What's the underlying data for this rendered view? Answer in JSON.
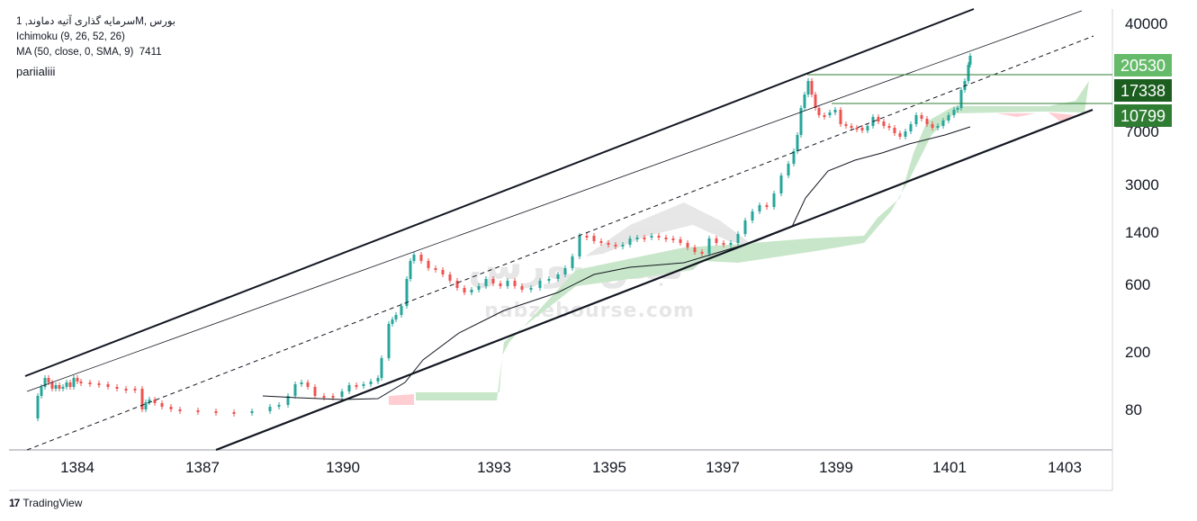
{
  "legend": {
    "line1": "بورس ,Mسرمایه گذاری آتیه دماوند, 1",
    "line2": "Ichimoku (9, 26, 52, 26)",
    "line3_label": "MA (50, close, 0, SMA, 9)",
    "line3_value": "7411"
  },
  "tag": "pariialiii",
  "watermark": {
    "text": "nabzebourse.com",
    "logo_text": "نبض بورس"
  },
  "footer": {
    "brand": "TradingView",
    "logo": "tradingview-logo"
  },
  "price_labels": [
    {
      "value": "20530",
      "bg": "#66bb6a",
      "fg": "#ffffff"
    },
    {
      "value": "17338",
      "bg": "#1b5e20",
      "fg": "#ffffff"
    },
    {
      "value": "10799",
      "bg": "#2e7d32",
      "fg": "#ffffff"
    }
  ],
  "colors": {
    "up": "#26a69a",
    "down": "#ef5350",
    "cloud_green": "#c8e6c9",
    "cloud_red": "#ffcdd2",
    "grid": "#d1d4dc"
  },
  "chart_data": {
    "type": "candlestick",
    "y_scale": "log",
    "ylim": [
      50,
      45000
    ],
    "y_ticks": [
      40000,
      7000,
      3000,
      1400,
      600,
      200,
      80
    ],
    "x_ticks": [
      "1384",
      "1387",
      "1390",
      "1393",
      "1395",
      "1397",
      "1399",
      "1401",
      "1403"
    ],
    "series": [
      {
        "name": "Ichimoku (9, 26, 52, 26)",
        "kind": "cloud"
      },
      {
        "name": "MA (50, close, 0, SMA, 9)",
        "kind": "line",
        "last_value": 7411
      }
    ],
    "horizontal_levels": [
      20530,
      17338,
      10799
    ]
  }
}
